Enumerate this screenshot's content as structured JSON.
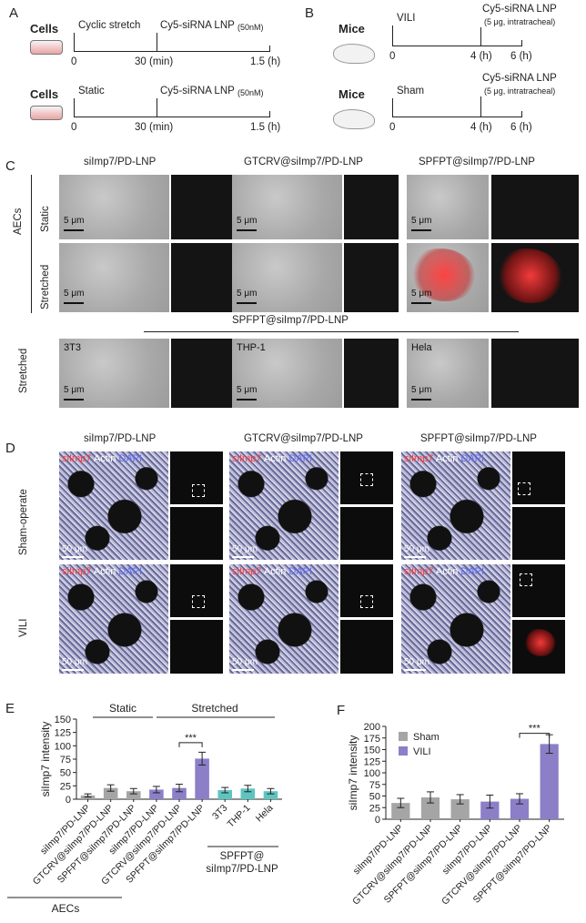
{
  "panels": {
    "A": "A",
    "B": "B",
    "C": "C",
    "D": "D",
    "E": "E",
    "F": "F"
  },
  "panelA": {
    "row1": {
      "cells": "Cells",
      "event1": "Cyclic stretch",
      "event2": "Cy5-siRNA LNP",
      "conc": "(50nM)",
      "t0": "0",
      "t30": "30 (min)",
      "t15": "1.5 (h)"
    },
    "row2": {
      "cells": "Cells",
      "event1": "Static",
      "event2": "Cy5-siRNA LNP",
      "conc": "(50nM)",
      "t0": "0",
      "t30": "30 (min)",
      "t15": "1.5 (h)"
    }
  },
  "panelB": {
    "row1": {
      "mice": "Mice",
      "event1": "VILI",
      "event2": "Cy5-siRNA LNP",
      "dose": "(5 μg, intratracheal)",
      "t0": "0",
      "t4": "4 (h)",
      "t6": "6 (h)"
    },
    "row2": {
      "mice": "Mice",
      "event1": "Sham",
      "event2": "Cy5-siRNA LNP",
      "dose": "(5 μg, intratracheal)",
      "t0": "0",
      "t4": "4 (h)",
      "t6": "6 (h)"
    }
  },
  "panelC": {
    "col1": "siImp7/PD-LNP",
    "col2": "GTCRV@siImp7/PD-LNP",
    "col3": "SPFPT@siImp7/PD-LNP",
    "group": "AECs",
    "row_static": "Static",
    "row_stretched": "Stretched",
    "lower_title": "SPFPT@siImp7/PD-LNP",
    "lower_row": "Stretched",
    "cell1": "3T3",
    "cell2": "THP-1",
    "cell3": "Hela",
    "scale": "5 μm"
  },
  "panelD": {
    "col1": "siImp7/PD-LNP",
    "col2": "GTCRV@siImp7/PD-LNP",
    "col3": "SPFPT@siImp7/PD-LNP",
    "row1": "Sham-operate",
    "row2": "VILI",
    "stain_red": "siImp7",
    "stain_white": "Actin",
    "stain_blue": "DAPI",
    "scale": "50 μm"
  },
  "chart_data": [
    {
      "type": "bar",
      "panel": "E",
      "ylabel": "siImp7 intensity",
      "ylim": [
        0,
        150
      ],
      "yticks": [
        0,
        25,
        50,
        75,
        100,
        125,
        150
      ],
      "categories": [
        "siImp7/PD-LNP",
        "GTCRV@siImp7/PD-LNP",
        "SPFPT@siImp7/PD-LNP",
        "siImp7/PD-LNP",
        "GTCRV@siImp7/PD-LNP",
        "SPFPT@siImp7/PD-LNP",
        "3T3",
        "THP-1",
        "Hela"
      ],
      "values": [
        7,
        21,
        15,
        18,
        21,
        76,
        17,
        20,
        15
      ],
      "errors": [
        3,
        6,
        5,
        6,
        7,
        12,
        5,
        6,
        5
      ],
      "colors": [
        "#a5a5a5",
        "#a5a5a5",
        "#a5a5a5",
        "#8c7fc8",
        "#8c7fc8",
        "#8c7fc8",
        "#5fc4c0",
        "#5fc4c0",
        "#5fc4c0"
      ],
      "group_labels": {
        "static": "Static",
        "stretched": "Stretched",
        "spfpt_line1": "SPFPT@",
        "spfpt_line2": "siImp7/PD-LNP",
        "aecs": "AECs"
      },
      "significance": "***"
    },
    {
      "type": "bar",
      "panel": "F",
      "ylabel": "siImp7 intensity",
      "ylim": [
        0,
        200
      ],
      "yticks": [
        0,
        25,
        50,
        75,
        100,
        125,
        150,
        175,
        200
      ],
      "categories": [
        "siImp7/PD-LNP",
        "GTCRV@siImp7/PD-LNP",
        "SPFPT@siImp7/PD-LNP",
        "siImp7/PD-LNP",
        "GTCRV@siImp7/PD-LNP",
        "SPFPT@siImp7/PD-LNP"
      ],
      "series": [
        {
          "name": "Sham",
          "color": "#a5a5a5"
        },
        {
          "name": "VILI",
          "color": "#8c7fc8"
        }
      ],
      "values": [
        35,
        47,
        43,
        38,
        44,
        162
      ],
      "errors": [
        10,
        12,
        10,
        14,
        11,
        20
      ],
      "bar_series": [
        0,
        0,
        0,
        1,
        1,
        1
      ],
      "legend_placement": "top-left",
      "significance": "***"
    }
  ]
}
